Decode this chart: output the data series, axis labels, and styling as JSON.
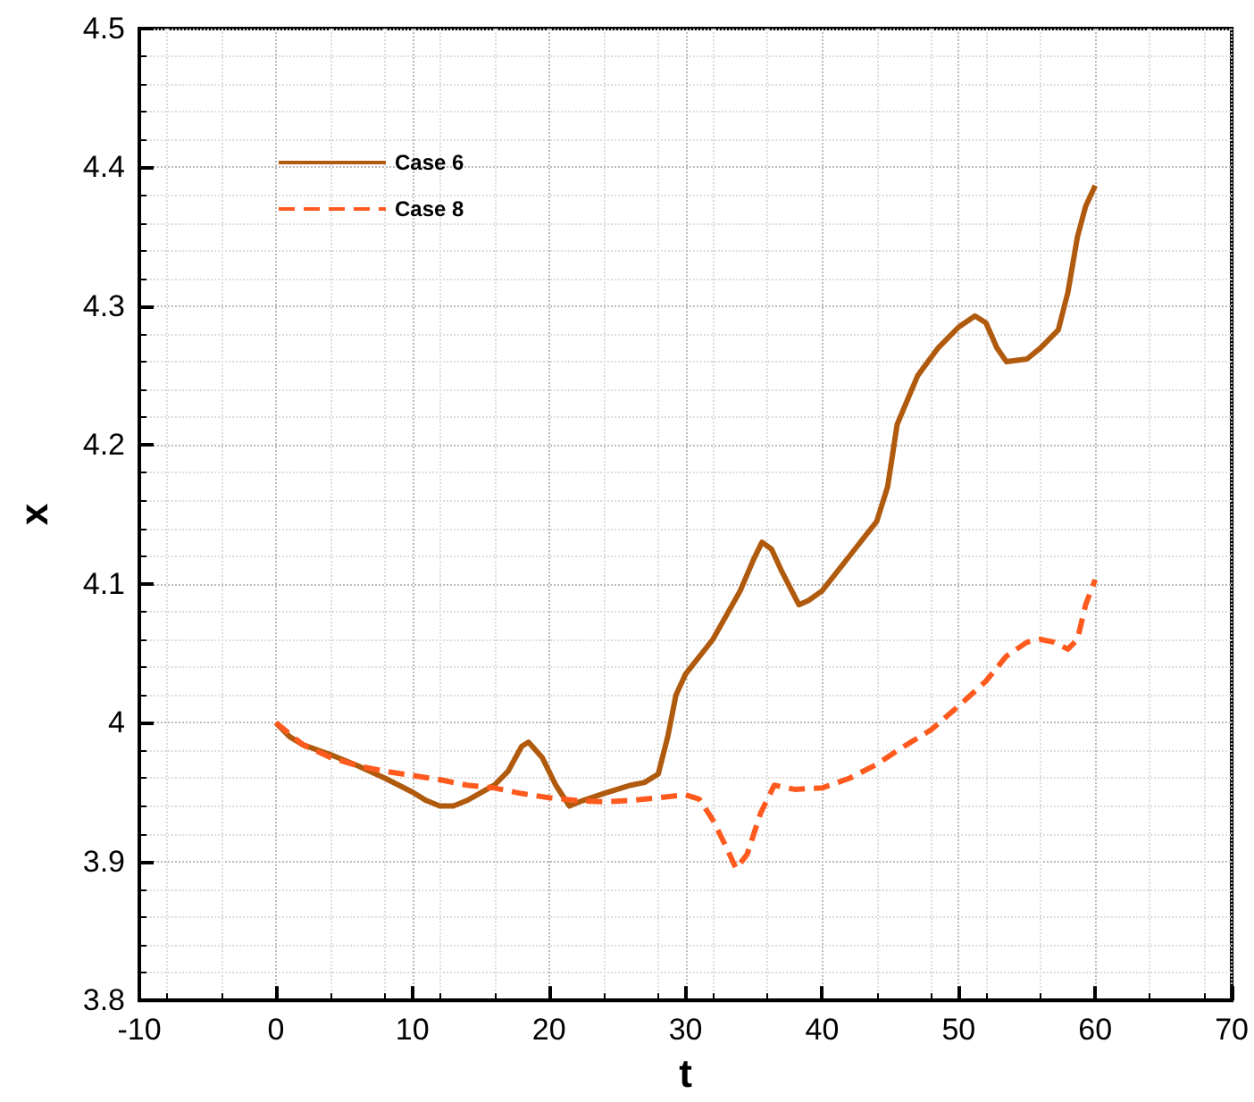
{
  "chart_data": {
    "type": "line",
    "xlabel": "t",
    "ylabel": "x",
    "xlim": [
      -10,
      70
    ],
    "xticks": [
      -10,
      0,
      10,
      20,
      30,
      40,
      50,
      60,
      70
    ],
    "ylim": [
      3.8,
      4.5
    ],
    "yticks": [
      3.8,
      3.9,
      4,
      4.1,
      4.2,
      4.3,
      4.4,
      4.5
    ],
    "grid": true,
    "legend": "top left",
    "marker": "none",
    "series": [
      {
        "name": "Case 6",
        "color": "#b05a0e",
        "line_style": "solid",
        "x": [
          0,
          1,
          2,
          4,
          6,
          8,
          10,
          11,
          12,
          13,
          14,
          16,
          17,
          18,
          18.5,
          19.5,
          20.5,
          21.5,
          22.5,
          24,
          26,
          27,
          28,
          28.7,
          29.3,
          30,
          32,
          34,
          35,
          35.6,
          36.3,
          37,
          38.3,
          39,
          40,
          42,
          44,
          44.8,
          45.5,
          47,
          48.5,
          50,
          51.2,
          52,
          52.8,
          53.5,
          55,
          56,
          57.3,
          58,
          58.7,
          59.3,
          60
        ],
        "values": [
          4.0,
          3.99,
          3.984,
          3.977,
          3.969,
          3.96,
          3.95,
          3.944,
          3.94,
          3.94,
          3.944,
          3.955,
          3.965,
          3.983,
          3.986,
          3.975,
          3.955,
          3.94,
          3.944,
          3.949,
          3.955,
          3.957,
          3.963,
          3.99,
          4.02,
          4.035,
          4.06,
          4.095,
          4.118,
          4.13,
          4.125,
          4.11,
          4.085,
          4.088,
          4.095,
          4.12,
          4.145,
          4.17,
          4.215,
          4.25,
          4.27,
          4.285,
          4.293,
          4.288,
          4.27,
          4.26,
          4.262,
          4.27,
          4.283,
          4.31,
          4.35,
          4.372,
          4.387
        ]
      },
      {
        "name": "Case 8",
        "color": "#ff5a1e",
        "line_style": "dashed",
        "x": [
          0,
          2,
          4,
          6,
          8,
          10,
          12,
          14,
          16,
          18,
          20,
          22,
          24,
          26,
          28,
          30,
          31,
          32,
          33,
          33.7,
          34.5,
          35.5,
          36.5,
          38,
          40,
          42,
          44,
          46,
          48,
          50,
          52,
          53.5,
          55,
          56,
          57,
          58,
          58.7,
          59.3,
          60
        ],
        "values": [
          4.0,
          3.984,
          3.975,
          3.969,
          3.965,
          3.962,
          3.959,
          3.955,
          3.953,
          3.949,
          3.946,
          3.944,
          3.943,
          3.944,
          3.946,
          3.948,
          3.945,
          3.93,
          3.91,
          3.895,
          3.905,
          3.935,
          3.955,
          3.952,
          3.953,
          3.96,
          3.97,
          3.983,
          3.995,
          4.012,
          4.03,
          4.048,
          4.058,
          4.06,
          4.058,
          4.053,
          4.06,
          4.085,
          4.103
        ]
      }
    ]
  }
}
